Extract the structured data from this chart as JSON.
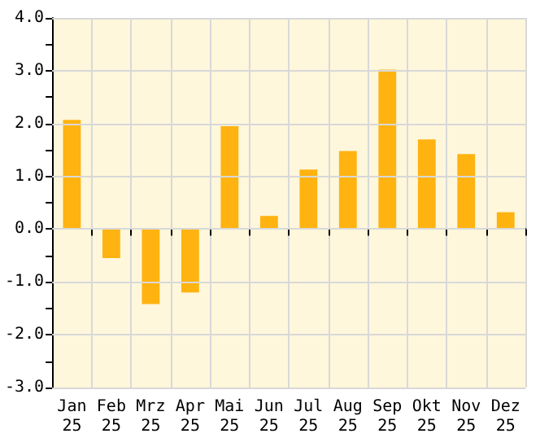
{
  "chart_data": {
    "type": "bar",
    "categories": [
      "Jan\n25",
      "Feb\n25",
      "Mrz\n25",
      "Apr\n25",
      "Mai\n25",
      "Jun\n25",
      "Jul\n25",
      "Aug\n25",
      "Sep\n25",
      "Okt\n25",
      "Nov\n25",
      "Dez\n25"
    ],
    "values": [
      2.07,
      -0.55,
      -1.42,
      -1.2,
      1.95,
      0.25,
      1.13,
      1.48,
      3.02,
      1.7,
      1.42,
      0.32
    ],
    "color": "#ffb310",
    "ylim": [
      -3,
      4
    ],
    "yticks": [
      {
        "value": -3,
        "label": "-3.0"
      },
      {
        "value": -2.5,
        "label": null
      },
      {
        "value": -2,
        "label": "-2.0"
      },
      {
        "value": -1.5,
        "label": null
      },
      {
        "value": -1,
        "label": "-1.0"
      },
      {
        "value": -0.5,
        "label": null
      },
      {
        "value": 0,
        "label": "0.0"
      },
      {
        "value": 0.5,
        "label": null
      },
      {
        "value": 1,
        "label": "1.0"
      },
      {
        "value": 1.5,
        "label": null
      },
      {
        "value": 2,
        "label": "2.0"
      },
      {
        "value": 2.5,
        "label": null
      },
      {
        "value": 3,
        "label": "3.0"
      },
      {
        "value": 3.5,
        "label": null
      },
      {
        "value": 4,
        "label": "4.0"
      }
    ],
    "grid": true
  }
}
